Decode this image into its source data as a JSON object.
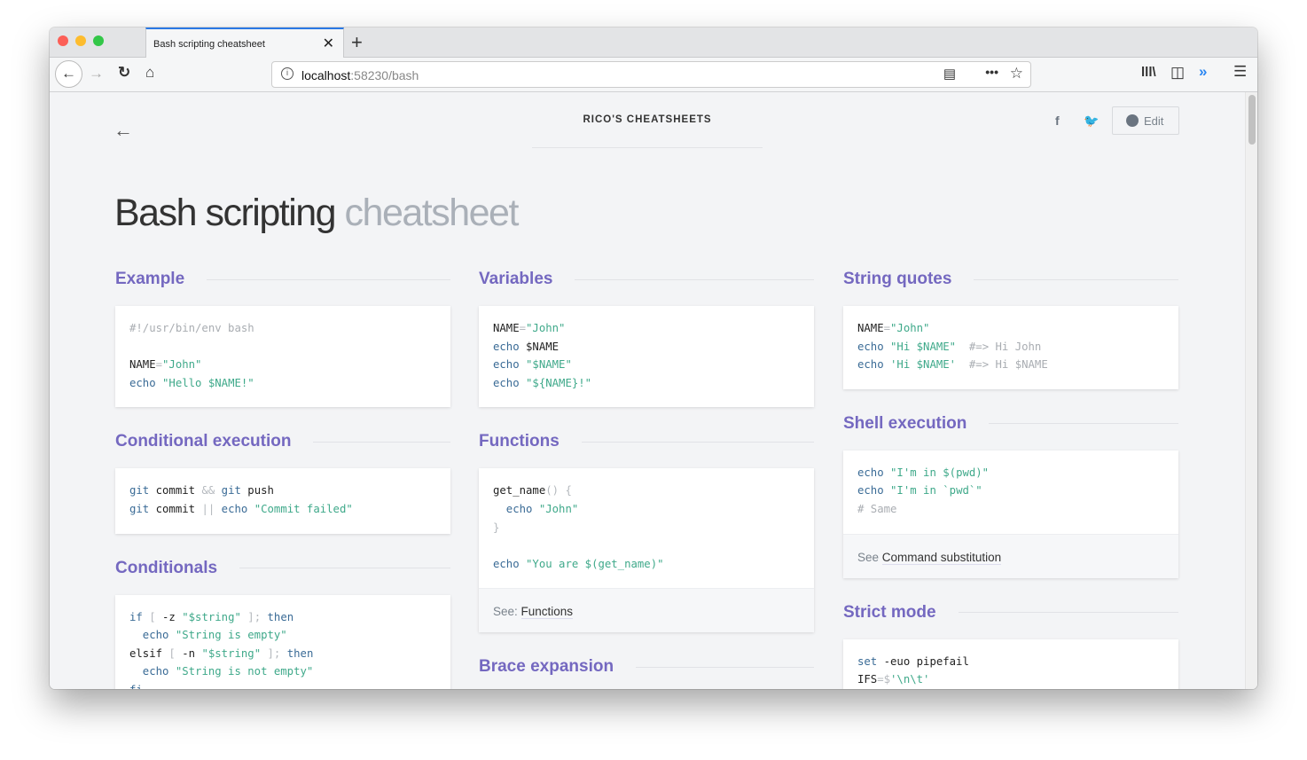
{
  "browser": {
    "tab_title": "Bash scripting cheatsheet",
    "url_host": "localhost",
    "url_rest": ":58230/bash",
    "accent": "#2a78e4"
  },
  "header": {
    "brand": "RICO'S CHEATSHEETS",
    "edit_label": "Edit"
  },
  "page": {
    "title_main": "Bash scripting",
    "title_light": "cheatsheet"
  },
  "columns": [
    [
      {
        "title": "Example",
        "lines": [
          [
            [
              "#!/usr/bin/env bash",
              "cm"
            ]
          ],
          [],
          [
            [
              "NAME",
              "d"
            ],
            [
              "=",
              "p"
            ],
            [
              "\"John\"",
              "str"
            ]
          ],
          [
            [
              "echo",
              "kw"
            ],
            [
              " ",
              "d"
            ],
            [
              "\"Hello $NAME!\"",
              "str"
            ]
          ]
        ]
      },
      {
        "title": "Conditional execution",
        "lines": [
          [
            [
              "git",
              "kw"
            ],
            [
              " commit ",
              "d"
            ],
            [
              "&&",
              "p"
            ],
            [
              " ",
              "d"
            ],
            [
              "git",
              "kw"
            ],
            [
              " push",
              "d"
            ]
          ],
          [
            [
              "git",
              "kw"
            ],
            [
              " commit ",
              "d"
            ],
            [
              "||",
              "p"
            ],
            [
              " ",
              "d"
            ],
            [
              "echo",
              "kw"
            ],
            [
              " ",
              "d"
            ],
            [
              "\"Commit failed\"",
              "str"
            ]
          ]
        ]
      },
      {
        "title": "Conditionals",
        "lines": [
          [
            [
              "if",
              "kw"
            ],
            [
              " [ ",
              "p"
            ],
            [
              "-z ",
              "d"
            ],
            [
              "\"$string\"",
              "str"
            ],
            [
              " ];",
              "p"
            ],
            [
              " then",
              "kw"
            ]
          ],
          [
            [
              "  echo",
              "kw"
            ],
            [
              " ",
              "d"
            ],
            [
              "\"String is empty\"",
              "str"
            ]
          ],
          [
            [
              "elsif",
              "d"
            ],
            [
              " [ ",
              "p"
            ],
            [
              "-n ",
              "d"
            ],
            [
              "\"$string\"",
              "str"
            ],
            [
              " ];",
              "p"
            ],
            [
              " then",
              "kw"
            ]
          ],
          [
            [
              "  echo",
              "kw"
            ],
            [
              " ",
              "d"
            ],
            [
              "\"String is not empty\"",
              "str"
            ]
          ],
          [
            [
              "fi",
              "kw"
            ]
          ]
        ]
      }
    ],
    [
      {
        "title": "Variables",
        "lines": [
          [
            [
              "NAME",
              "d"
            ],
            [
              "=",
              "p"
            ],
            [
              "\"John\"",
              "str"
            ]
          ],
          [
            [
              "echo",
              "kw"
            ],
            [
              " $NAME",
              "d"
            ]
          ],
          [
            [
              "echo",
              "kw"
            ],
            [
              " ",
              "d"
            ],
            [
              "\"$NAME\"",
              "str"
            ]
          ],
          [
            [
              "echo",
              "kw"
            ],
            [
              " ",
              "d"
            ],
            [
              "\"${NAME}!\"",
              "str"
            ]
          ]
        ]
      },
      {
        "title": "Functions",
        "lines": [
          [
            [
              "get_name",
              "d"
            ],
            [
              "() {",
              "p"
            ]
          ],
          [
            [
              "  echo",
              "kw"
            ],
            [
              " ",
              "d"
            ],
            [
              "\"John\"",
              "str"
            ]
          ],
          [
            [
              "}",
              "p"
            ]
          ],
          [],
          [
            [
              "echo",
              "kw"
            ],
            [
              " ",
              "d"
            ],
            [
              "\"You are $(get_name)\"",
              "str"
            ]
          ]
        ],
        "footer_prefix": "See: ",
        "footer_link": "Functions"
      },
      {
        "title": "Brace expansion",
        "lines": []
      }
    ],
    [
      {
        "title": "String quotes",
        "lines": [
          [
            [
              "NAME",
              "d"
            ],
            [
              "=",
              "p"
            ],
            [
              "\"John\"",
              "str"
            ]
          ],
          [
            [
              "echo",
              "kw"
            ],
            [
              " ",
              "d"
            ],
            [
              "\"Hi $NAME\"",
              "str"
            ],
            [
              "  #=> Hi John",
              "cm"
            ]
          ],
          [
            [
              "echo",
              "kw"
            ],
            [
              " ",
              "d"
            ],
            [
              "'Hi $NAME'",
              "str"
            ],
            [
              "  #=> Hi $NAME",
              "cm"
            ]
          ]
        ]
      },
      {
        "title": "Shell execution",
        "lines": [
          [
            [
              "echo",
              "kw"
            ],
            [
              " ",
              "d"
            ],
            [
              "\"I'm in $(pwd)\"",
              "str"
            ]
          ],
          [
            [
              "echo",
              "kw"
            ],
            [
              " ",
              "d"
            ],
            [
              "\"I'm in `pwd`\"",
              "str"
            ]
          ],
          [
            [
              "# Same",
              "cm"
            ]
          ]
        ],
        "footer_prefix": "See ",
        "footer_link": "Command substitution"
      },
      {
        "title": "Strict mode",
        "lines": [
          [
            [
              "set",
              "kw"
            ],
            [
              " -euo pipefail",
              "d"
            ]
          ],
          [
            [
              "IFS",
              "d"
            ],
            [
              "=$",
              "p"
            ],
            [
              "'\\n\\t'",
              "str"
            ]
          ]
        ]
      }
    ]
  ],
  "colors": {
    "heading": "#7468c0",
    "keyword": "#3a6b96",
    "string": "#3fa98a",
    "comment": "#a9adb2"
  }
}
